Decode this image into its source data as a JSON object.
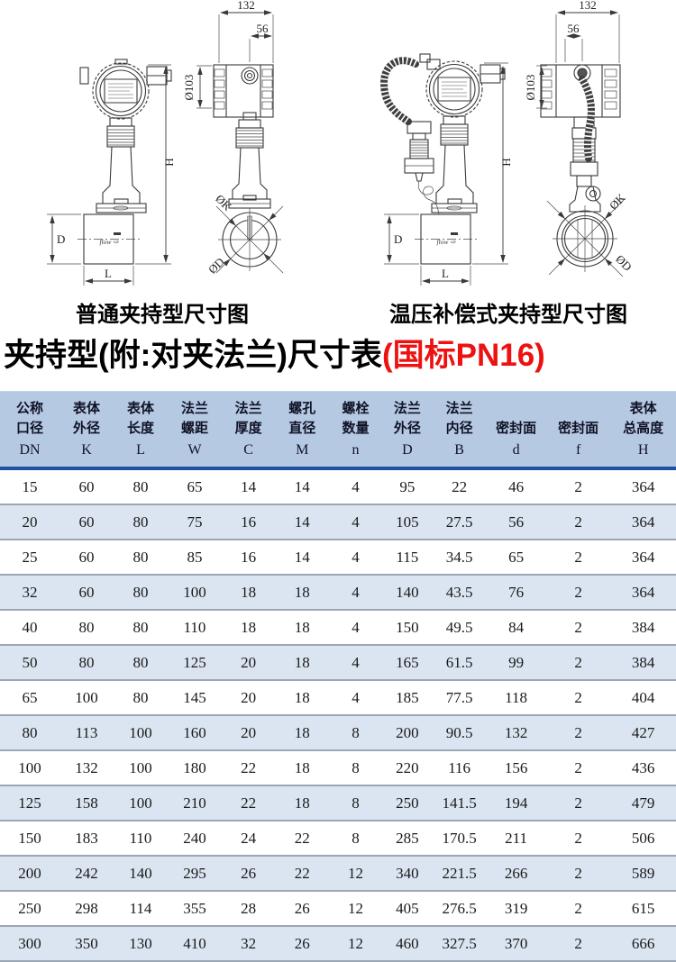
{
  "title": {
    "main": "夹持型(附:对夹法兰)尺寸表",
    "highlight": "(国标PN16)"
  },
  "diagrams": {
    "ordinary": {
      "caption": "普通夹持型尺寸图",
      "flow_label": "flow ⇨",
      "dims": {
        "housing_width": "132",
        "port_offset": "56",
        "housing_diameter": "Ø103",
        "total_height": "H",
        "body_height": "D",
        "body_length": "L",
        "bolt_circle_diameter": "ØK",
        "flange_diameter": "ØD"
      }
    },
    "compensated": {
      "caption": "温压补偿式夹持型尺寸图",
      "flow_label": "flow ⇨",
      "dims": {
        "housing_width": "132",
        "port_offset": "56",
        "housing_diameter": "Ø103",
        "total_height": "H",
        "body_height": "D",
        "body_length": "L",
        "bolt_circle_diameter": "ØK",
        "flange_diameter": "ØD"
      }
    }
  },
  "table": {
    "headers": [
      {
        "line1": "公称",
        "line2": "口径",
        "symbol": "DN"
      },
      {
        "line1": "表体",
        "line2": "外径",
        "symbol": "K"
      },
      {
        "line1": "表体",
        "line2": "长度",
        "symbol": "L"
      },
      {
        "line1": "法兰",
        "line2": "螺距",
        "symbol": "W"
      },
      {
        "line1": "法兰",
        "line2": "厚度",
        "symbol": "C"
      },
      {
        "line1": "螺孔",
        "line2": "直径",
        "symbol": "M"
      },
      {
        "line1": "螺栓",
        "line2": "数量",
        "symbol": "n"
      },
      {
        "line1": "法兰",
        "line2": "外径",
        "symbol": "D"
      },
      {
        "line1": "法兰",
        "line2": "内径",
        "symbol": "B"
      },
      {
        "line1": "",
        "line2": "密封面",
        "symbol": "d"
      },
      {
        "line1": "",
        "line2": "密封面",
        "symbol": "f"
      },
      {
        "line1": "表体",
        "line2": "总高度",
        "symbol": "H"
      }
    ],
    "rows": [
      [
        "15",
        "60",
        "80",
        "65",
        "14",
        "14",
        "4",
        "95",
        "22",
        "46",
        "2",
        "364"
      ],
      [
        "20",
        "60",
        "80",
        "75",
        "16",
        "14",
        "4",
        "105",
        "27.5",
        "56",
        "2",
        "364"
      ],
      [
        "25",
        "60",
        "80",
        "85",
        "16",
        "14",
        "4",
        "115",
        "34.5",
        "65",
        "2",
        "364"
      ],
      [
        "32",
        "60",
        "80",
        "100",
        "18",
        "18",
        "4",
        "140",
        "43.5",
        "76",
        "2",
        "364"
      ],
      [
        "40",
        "80",
        "80",
        "110",
        "18",
        "18",
        "4",
        "150",
        "49.5",
        "84",
        "2",
        "384"
      ],
      [
        "50",
        "80",
        "80",
        "125",
        "20",
        "18",
        "4",
        "165",
        "61.5",
        "99",
        "2",
        "384"
      ],
      [
        "65",
        "100",
        "80",
        "145",
        "20",
        "18",
        "4",
        "185",
        "77.5",
        "118",
        "2",
        "404"
      ],
      [
        "80",
        "113",
        "100",
        "160",
        "20",
        "18",
        "8",
        "200",
        "90.5",
        "132",
        "2",
        "427"
      ],
      [
        "100",
        "132",
        "100",
        "180",
        "22",
        "18",
        "8",
        "220",
        "116",
        "156",
        "2",
        "436"
      ],
      [
        "125",
        "158",
        "100",
        "210",
        "22",
        "18",
        "8",
        "250",
        "141.5",
        "194",
        "2",
        "479"
      ],
      [
        "150",
        "183",
        "110",
        "240",
        "24",
        "22",
        "8",
        "285",
        "170.5",
        "211",
        "2",
        "506"
      ],
      [
        "200",
        "242",
        "140",
        "295",
        "26",
        "22",
        "12",
        "340",
        "221.5",
        "266",
        "2",
        "589"
      ],
      [
        "250",
        "298",
        "114",
        "355",
        "28",
        "26",
        "12",
        "405",
        "276.5",
        "319",
        "2",
        "615"
      ],
      [
        "300",
        "350",
        "130",
        "410",
        "32",
        "26",
        "12",
        "460",
        "327.5",
        "370",
        "2",
        "666"
      ]
    ]
  },
  "colors": {
    "header_bg": "#b6c9e2",
    "row_alt_bg": "#dbe5f1",
    "header_divider": "#1d53a6",
    "row_divider": "#9ba7b6",
    "title_highlight": "#ee1111"
  }
}
